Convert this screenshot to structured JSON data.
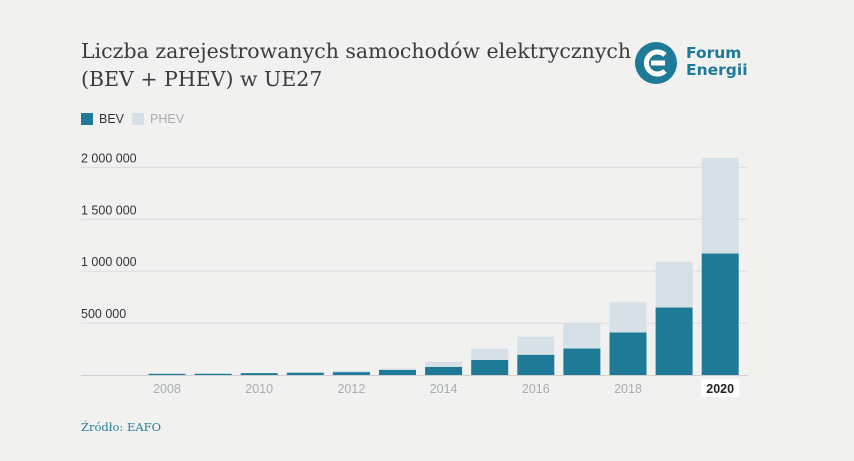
{
  "header": {
    "title_line1": "Liczba zarejestrowanych samochodów elektrycznych",
    "title_line2": "(BEV + PHEV) w UE27"
  },
  "logo": {
    "line1": "Forum",
    "line2": "Energii"
  },
  "legend": {
    "bev": "BEV",
    "phev": "PHEV"
  },
  "colors": {
    "bev": "#1e7a96",
    "phev": "#d5e1e6",
    "logo": "#1e7a96",
    "logo_accent": "#d9363e"
  },
  "source": "Źródło: EAFO",
  "chart_data": {
    "type": "bar",
    "stacked": true,
    "categories": [
      "2008",
      "2009",
      "2010",
      "2011",
      "2012",
      "2013",
      "2014",
      "2015",
      "2016",
      "2017",
      "2018",
      "2019",
      "2020"
    ],
    "x_tick_labels": [
      "2008",
      "",
      "2010",
      "",
      "2012",
      "",
      "2014",
      "",
      "2016",
      "",
      "2018",
      "",
      "2020"
    ],
    "highlighted_category": "2020",
    "series": [
      {
        "name": "BEV",
        "values": [
          1000,
          12000,
          18000,
          22000,
          28000,
          48000,
          78000,
          145000,
          195000,
          255000,
          410000,
          650000,
          1170000
        ]
      },
      {
        "name": "PHEV",
        "values": [
          0,
          0,
          0,
          0,
          5000,
          15000,
          50000,
          110000,
          175000,
          245000,
          290000,
          440000,
          920000
        ]
      }
    ],
    "y_ticks": [
      {
        "value": 500000,
        "label": "500 000"
      },
      {
        "value": 1000000,
        "label": "1 000 000"
      },
      {
        "value": 1500000,
        "label": "1 500 000"
      },
      {
        "value": 2000000,
        "label": "2 000 000"
      }
    ],
    "ylim": [
      0,
      2100000
    ],
    "grid": true,
    "legend_position": "top-left"
  }
}
